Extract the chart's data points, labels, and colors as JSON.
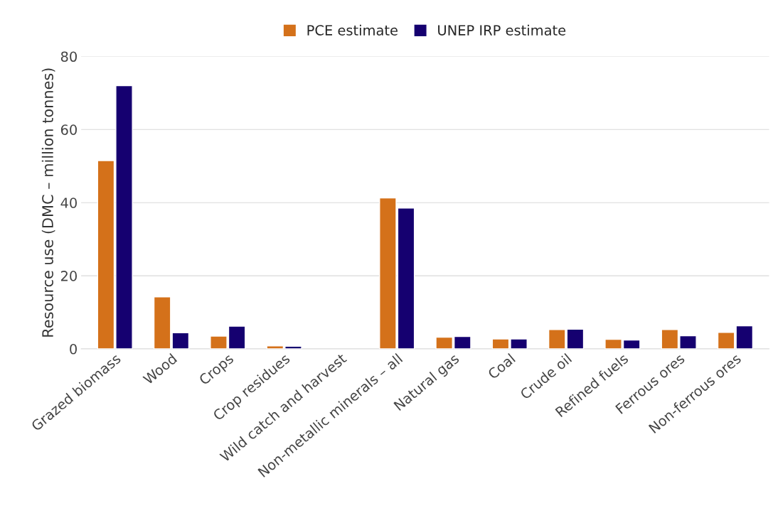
{
  "chart_data": {
    "type": "bar",
    "ylabel": "Resource use (DMC – million tonnes)",
    "categories": [
      "Grazed biomass",
      "Wood",
      "Crops",
      "Crop residues",
      "Wild catch and harvest",
      "Non-metallic minerals – all",
      "Natural gas",
      "Coal",
      "Crude oil",
      "Refined fuels",
      "Ferrous ores",
      "Non-ferrous ores"
    ],
    "series": [
      {
        "name": "PCE estimate",
        "color": "#d4711a",
        "values": [
          51.5,
          14.2,
          3.5,
          0.8,
          null,
          41.3,
          3.2,
          2.7,
          5.3,
          2.6,
          5.3,
          4.5
        ]
      },
      {
        "name": "UNEP IRP estimate",
        "color": "#150070",
        "values": [
          72,
          4.4,
          6.2,
          0.7,
          null,
          38.5,
          3.4,
          2.7,
          5.4,
          2.4,
          3.6,
          6.3
        ]
      }
    ],
    "ylim": [
      0,
      80
    ],
    "yticks": [
      0,
      20,
      40,
      60,
      80
    ],
    "grid": "y",
    "legend": "top"
  }
}
